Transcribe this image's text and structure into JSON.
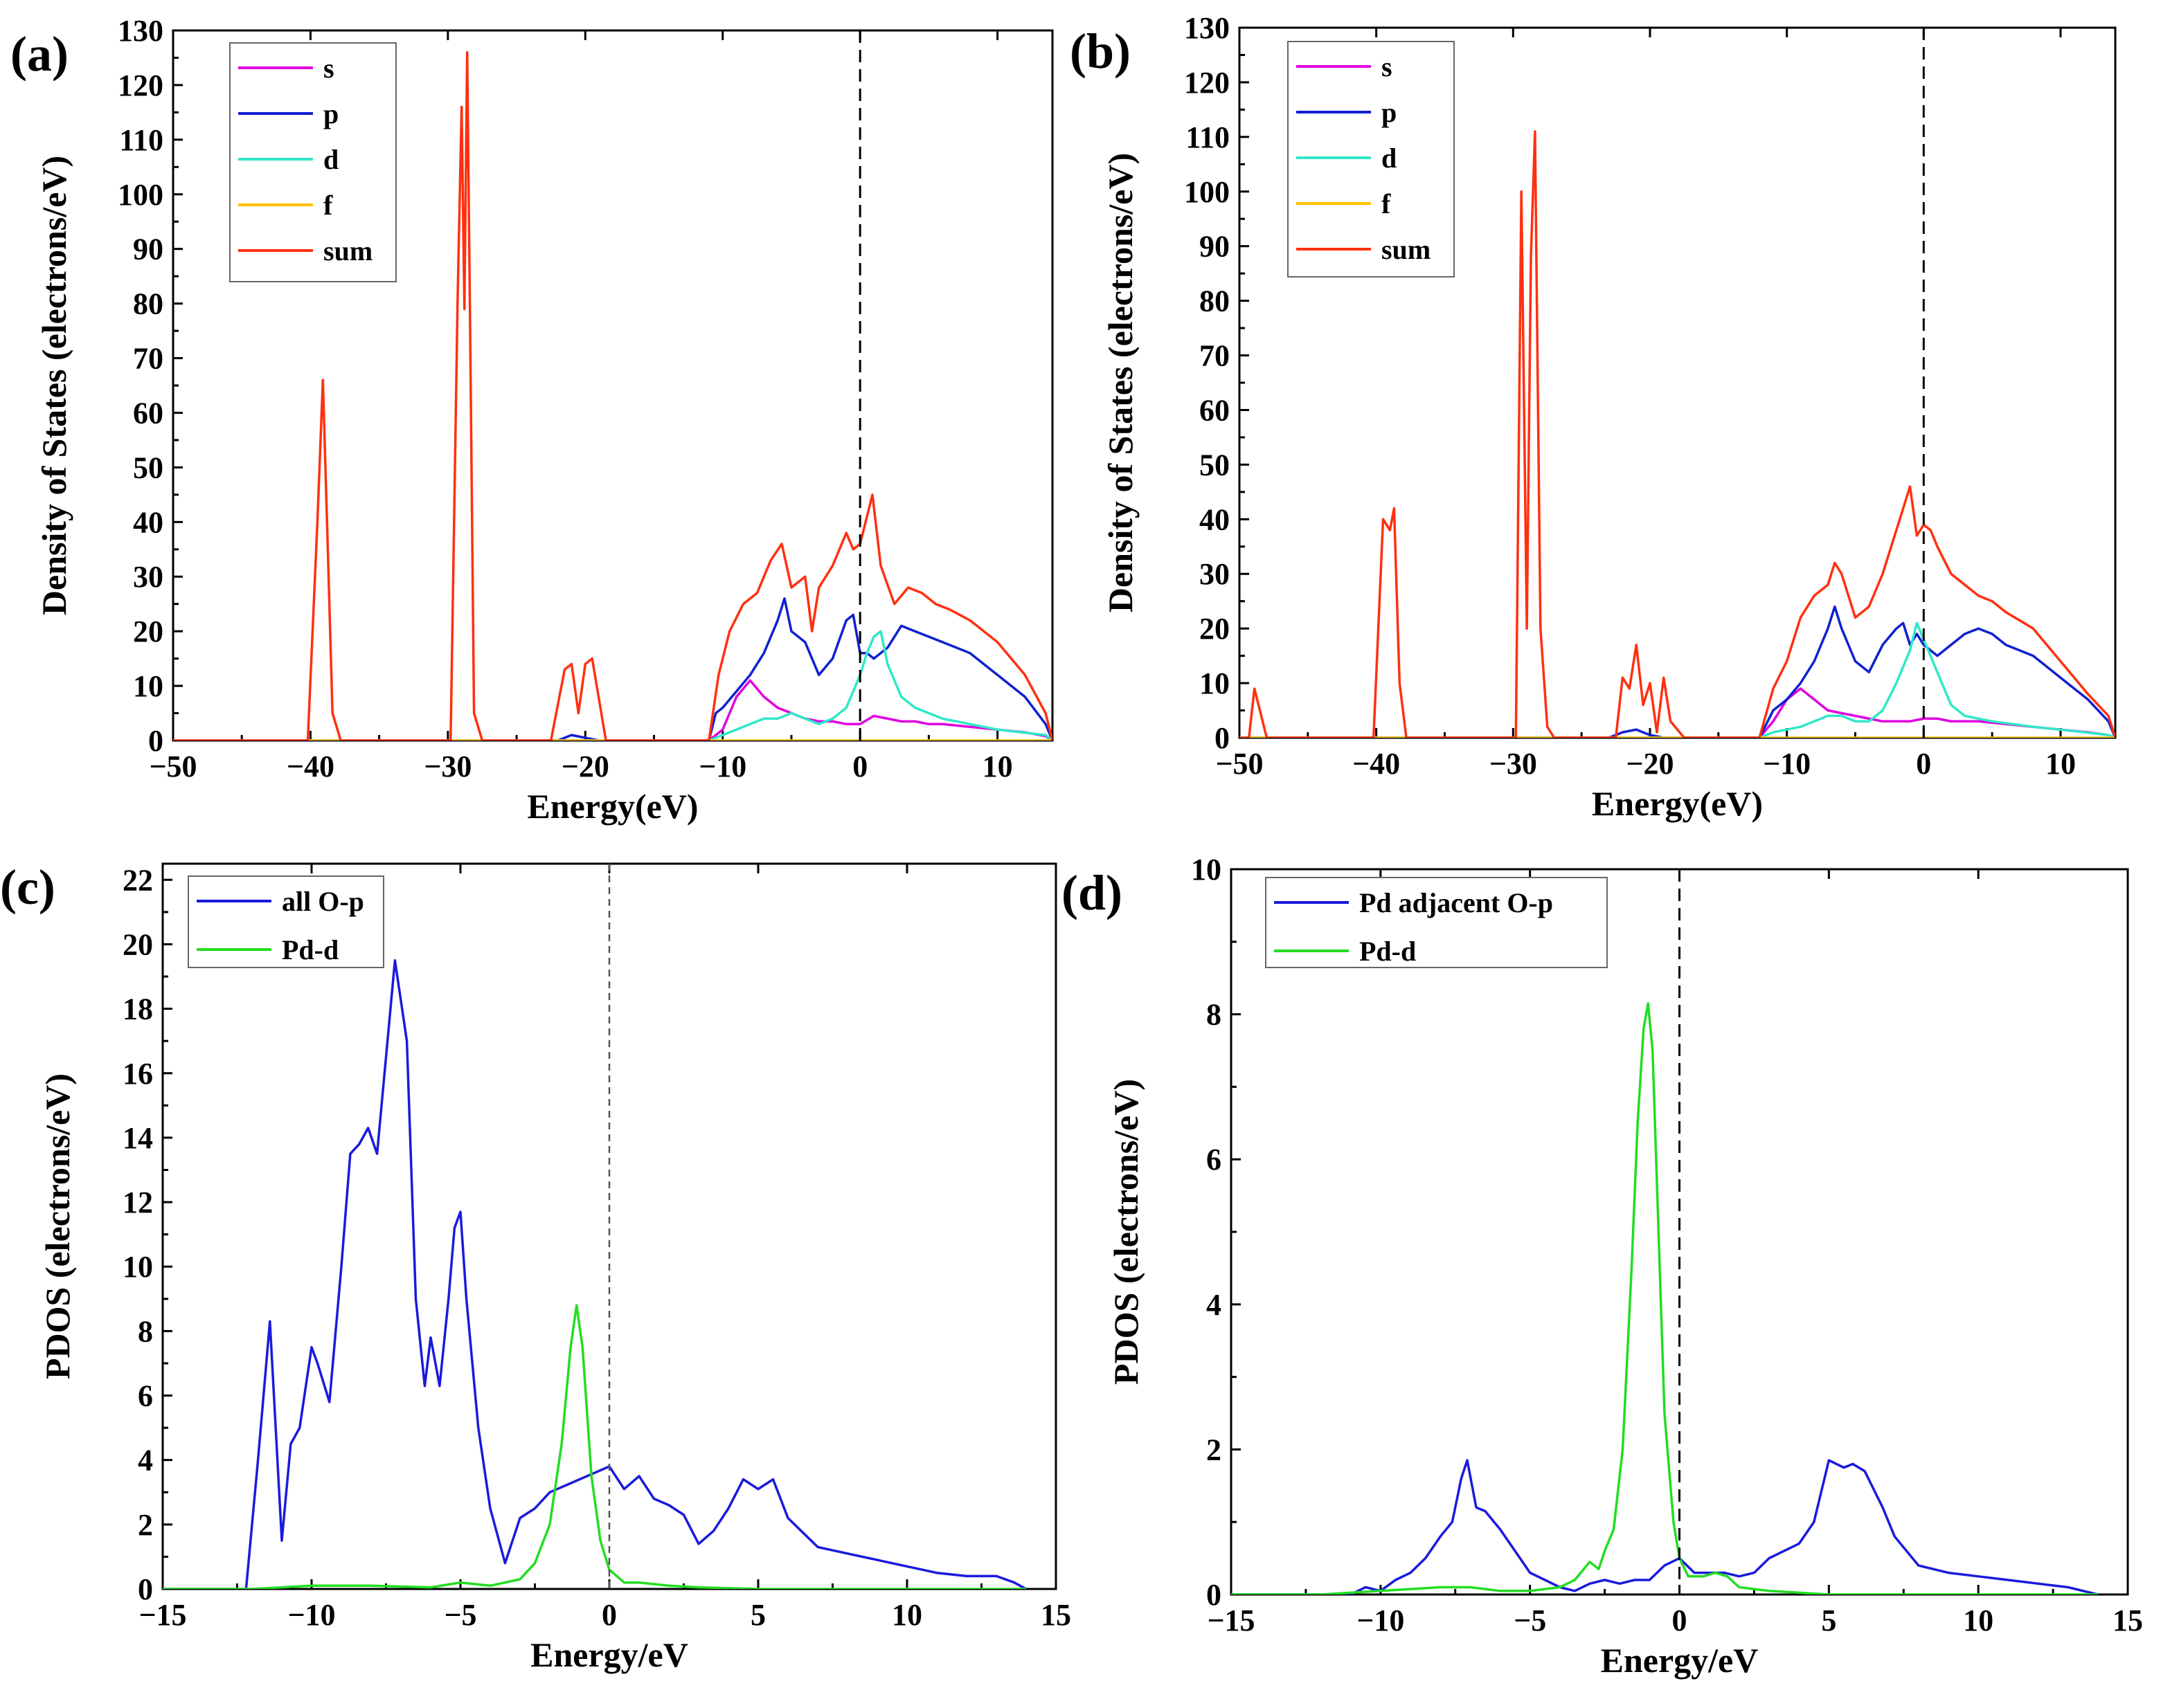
{
  "chart_data": [
    {
      "panel": "(a)",
      "type": "line",
      "xlabel": "Energy(eV)",
      "ylabel": "Density of States (electrons/eV)",
      "xlim": [
        -50,
        14
      ],
      "ylim": [
        0,
        130
      ],
      "xticks": [
        -50,
        -40,
        -30,
        -20,
        -10,
        0,
        10
      ],
      "yticks": [
        0,
        10,
        20,
        30,
        40,
        50,
        60,
        70,
        80,
        90,
        100,
        110,
        120,
        130
      ],
      "xtick_labels": [
        "−50",
        "−40",
        "−30",
        "−20",
        "−10",
        "0",
        "10"
      ],
      "ytick_labels": [
        "0",
        "10",
        "20",
        "30",
        "40",
        "50",
        "60",
        "70",
        "80",
        "90",
        "100",
        "110",
        "120",
        "130"
      ],
      "fermi_level": 0,
      "legend_position": "top-left",
      "series": [
        {
          "name": "s",
          "color": "#e000e0",
          "x": [
            -50,
            -11,
            -10,
            -9,
            -8,
            -7,
            -6,
            -5,
            -4,
            -3,
            -2,
            -1,
            0,
            1,
            2,
            3,
            4,
            5,
            6,
            8,
            10,
            12,
            13.5,
            14
          ],
          "y": [
            0,
            0,
            2,
            8,
            11,
            8,
            6,
            5,
            4,
            3.5,
            3.5,
            3,
            3,
            4.5,
            4,
            3.5,
            3.5,
            3,
            3,
            2.5,
            2,
            1.5,
            0.8,
            0
          ]
        },
        {
          "name": "p",
          "color": "#1020d0",
          "x": [
            -50,
            -22,
            -21,
            -20,
            -19,
            -11,
            -10.5,
            -10,
            -9,
            -8,
            -7,
            -6,
            -5.5,
            -5,
            -4,
            -3,
            -2,
            -1,
            -0.5,
            0,
            0.5,
            1,
            2,
            3,
            4,
            5,
            6,
            8,
            10,
            12,
            13.5,
            14
          ],
          "y": [
            0,
            0,
            1,
            0.5,
            0,
            0,
            5,
            6,
            9,
            12,
            16,
            22,
            26,
            20,
            18,
            12,
            15,
            22,
            23,
            16,
            16,
            15,
            17,
            21,
            20,
            19,
            18,
            16,
            12,
            8,
            3,
            0
          ]
        },
        {
          "name": "d",
          "color": "#30e8c8",
          "x": [
            -50,
            -11,
            -10,
            -9,
            -8,
            -7,
            -6,
            -5,
            -4,
            -3,
            -2,
            -1,
            0,
            0.5,
            1,
            1.5,
            2,
            3,
            4,
            6,
            8,
            10,
            13.5,
            14
          ],
          "y": [
            0,
            0,
            1,
            2,
            3,
            4,
            4,
            5,
            4,
            3,
            4,
            6,
            12,
            16,
            19,
            20,
            14,
            8,
            6,
            4,
            3,
            2,
            1,
            0
          ]
        },
        {
          "name": "f",
          "color": "#ffc000",
          "x": [
            -50,
            14
          ],
          "y": [
            0,
            0
          ]
        },
        {
          "name": "sum",
          "color": "#ff3010",
          "x": [
            -50,
            -40.2,
            -39.5,
            -39.1,
            -38.8,
            -38.4,
            -37.8,
            -29.8,
            -29.3,
            -29.0,
            -28.8,
            -28.6,
            -28.4,
            -28.1,
            -27.5,
            -22.5,
            -21.5,
            -21.0,
            -20.5,
            -20.0,
            -19.5,
            -18.5,
            -11.0,
            -10.3,
            -9.5,
            -8.5,
            -7.5,
            -6.5,
            -5.7,
            -5.0,
            -4.0,
            -3.5,
            -3.0,
            -2.0,
            -1.0,
            -0.5,
            0.0,
            0.5,
            0.9,
            1.5,
            2.5,
            3.5,
            4.5,
            5.5,
            6.5,
            8.0,
            10.0,
            12.0,
            13.5,
            14.0
          ],
          "y": [
            0,
            0,
            40,
            66,
            40,
            5,
            0,
            0,
            80,
            116,
            79,
            126,
            80,
            5,
            0,
            0,
            13,
            14,
            5,
            14,
            15,
            0,
            0,
            12,
            20,
            25,
            27,
            33,
            36,
            28,
            30,
            20,
            28,
            32,
            38,
            35,
            36,
            41,
            45,
            32,
            25,
            28,
            27,
            25,
            24,
            22,
            18,
            12,
            5,
            0
          ]
        }
      ]
    },
    {
      "panel": "(b)",
      "type": "line",
      "xlabel": "Energy(eV)",
      "ylabel": "Density of States (electrons/eV)",
      "xlim": [
        -50,
        14
      ],
      "ylim": [
        0,
        130
      ],
      "xticks": [
        -50,
        -40,
        -30,
        -20,
        -10,
        0,
        10
      ],
      "yticks": [
        0,
        10,
        20,
        30,
        40,
        50,
        60,
        70,
        80,
        90,
        100,
        110,
        120,
        130
      ],
      "xtick_labels": [
        "−50",
        "−40",
        "−30",
        "−20",
        "−10",
        "0",
        "10"
      ],
      "ytick_labels": [
        "0",
        "10",
        "20",
        "30",
        "40",
        "50",
        "60",
        "70",
        "80",
        "90",
        "100",
        "110",
        "120",
        "130"
      ],
      "fermi_level": 0,
      "legend_position": "top-left",
      "series": [
        {
          "name": "s",
          "color": "#e000e0",
          "x": [
            -50,
            -12,
            -11,
            -10,
            -9,
            -8,
            -7,
            -6,
            -5,
            -4,
            -3,
            -2,
            -1,
            0,
            1,
            2,
            4,
            6,
            8,
            10,
            12,
            13.5,
            14
          ],
          "y": [
            0,
            0,
            3,
            7,
            9,
            7,
            5,
            4.5,
            4,
            3.5,
            3,
            3,
            3,
            3.5,
            3.5,
            3,
            3,
            2.5,
            2,
            1.5,
            1,
            0.5,
            0
          ]
        },
        {
          "name": "p",
          "color": "#1020d0",
          "x": [
            -50,
            -23,
            -22,
            -21,
            -20,
            -19,
            -12,
            -11,
            -10,
            -9,
            -8,
            -7,
            -6.5,
            -6,
            -5,
            -4,
            -3,
            -2,
            -1.5,
            -1,
            -0.5,
            0,
            1,
            2,
            3,
            4,
            5,
            6,
            8,
            10,
            12,
            13.5,
            14
          ],
          "y": [
            0,
            0,
            1,
            1.5,
            0.5,
            0,
            0,
            5,
            7,
            10,
            14,
            20,
            24,
            20,
            14,
            12,
            17,
            20,
            21,
            17,
            19,
            17,
            15,
            17,
            19,
            20,
            19,
            17,
            15,
            11,
            7,
            3,
            0
          ]
        },
        {
          "name": "d",
          "color": "#30e8c8",
          "x": [
            -50,
            -12,
            -11,
            -10,
            -9,
            -8,
            -7,
            -6,
            -5,
            -4,
            -3,
            -2,
            -1,
            -0.5,
            0,
            1,
            2,
            3,
            5,
            8,
            10,
            13.5,
            14
          ],
          "y": [
            0,
            0,
            1,
            1.5,
            2,
            3,
            4,
            4,
            3,
            3,
            5,
            10,
            16,
            21,
            18,
            12,
            6,
            4,
            3,
            2,
            1.5,
            0.5,
            0
          ]
        },
        {
          "name": "f",
          "color": "#ffc000",
          "x": [
            -50,
            14
          ],
          "y": [
            0,
            0
          ]
        },
        {
          "name": "sum",
          "color": "#ff3010",
          "x": [
            -50,
            -49.3,
            -48.9,
            -48.5,
            -48.0,
            -40.2,
            -39.5,
            -39.0,
            -38.7,
            -38.3,
            -37.8,
            -29.8,
            -29.4,
            -29.0,
            -28.7,
            -28.4,
            -28.0,
            -27.5,
            -27.0,
            -22.5,
            -22.0,
            -21.5,
            -21.0,
            -20.5,
            -20.0,
            -19.5,
            -19.0,
            -18.5,
            -17.5,
            -12.0,
            -11.0,
            -10.0,
            -9.0,
            -8.0,
            -7.0,
            -6.5,
            -6.0,
            -5.0,
            -4.0,
            -3.0,
            -2.0,
            -1.0,
            -0.5,
            0.0,
            0.5,
            1.0,
            2.0,
            3.0,
            4.0,
            5.0,
            6.0,
            8.0,
            10.0,
            12.0,
            13.5,
            14.0
          ],
          "y": [
            0,
            0,
            9,
            5,
            0,
            0,
            40,
            38,
            42,
            10,
            0,
            0,
            100,
            20,
            88,
            111,
            20,
            2,
            0,
            0,
            11,
            9,
            17,
            6,
            10,
            1,
            11,
            3,
            0,
            0,
            9,
            14,
            22,
            26,
            28,
            32,
            30,
            22,
            24,
            30,
            38,
            46,
            37,
            39,
            38,
            35,
            30,
            28,
            26,
            25,
            23,
            20,
            14,
            8,
            4,
            0
          ]
        }
      ]
    },
    {
      "panel": "(c)",
      "type": "line",
      "xlabel": "Energy/eV",
      "ylabel": "PDOS (electrons/eV)",
      "xlim": [
        -15,
        15
      ],
      "ylim": [
        0,
        22.5
      ],
      "xticks": [
        -15,
        -10,
        -5,
        0,
        5,
        10,
        15
      ],
      "yticks": [
        0,
        2,
        4,
        6,
        8,
        10,
        12,
        14,
        16,
        18,
        20,
        22
      ],
      "xtick_labels": [
        "−15",
        "−10",
        "−5",
        "0",
        "5",
        "10",
        "15"
      ],
      "ytick_labels": [
        "0",
        "2",
        "4",
        "6",
        "8",
        "10",
        "12",
        "14",
        "16",
        "18",
        "20",
        "22"
      ],
      "fermi_level": 0,
      "legend_position": "top-left",
      "series": [
        {
          "name": "all O-p",
          "color": "#1a1adc",
          "x": [
            -15,
            -12.2,
            -11.8,
            -11.4,
            -11.0,
            -10.7,
            -10.4,
            -10.0,
            -9.8,
            -9.4,
            -9.0,
            -8.7,
            -8.4,
            -8.1,
            -7.8,
            -7.5,
            -7.2,
            -6.8,
            -6.5,
            -6.2,
            -6.0,
            -5.7,
            -5.4,
            -5.2,
            -5.0,
            -4.8,
            -4.4,
            -4.0,
            -3.5,
            -3.0,
            -2.5,
            -2.0,
            -1.5,
            -1.0,
            -0.5,
            0.0,
            0.5,
            1.0,
            1.5,
            2.0,
            2.5,
            3.0,
            3.5,
            4.0,
            4.5,
            5.0,
            5.5,
            6.0,
            7.0,
            8.0,
            9.0,
            10.0,
            11.0,
            12.0,
            13.0,
            13.6,
            14.0
          ],
          "y": [
            0,
            0,
            4,
            8.3,
            1.5,
            4.5,
            5,
            7.5,
            7,
            5.8,
            10,
            13.5,
            13.8,
            14.3,
            13.5,
            16.5,
            19.5,
            17,
            9,
            6.3,
            7.8,
            6.3,
            9,
            11.2,
            11.7,
            9,
            5,
            2.5,
            0.8,
            2.2,
            2.5,
            3,
            3.2,
            3.4,
            3.6,
            3.8,
            3.1,
            3.5,
            2.8,
            2.6,
            2.3,
            1.4,
            1.8,
            2.5,
            3.4,
            3.1,
            3.4,
            2.2,
            1.3,
            1.1,
            0.9,
            0.7,
            0.5,
            0.4,
            0.4,
            0.2,
            0
          ]
        },
        {
          "name": "Pd-d",
          "color": "#22dd22",
          "x": [
            -15,
            -12,
            -10,
            -8,
            -6,
            -5,
            -4,
            -3,
            -2.5,
            -2.0,
            -1.6,
            -1.3,
            -1.1,
            -0.9,
            -0.6,
            -0.3,
            0.0,
            0.5,
            1.0,
            2.0,
            3.0,
            5.0,
            8.0,
            14.0
          ],
          "y": [
            0,
            0,
            0.1,
            0.1,
            0.05,
            0.2,
            0.1,
            0.3,
            0.8,
            2.0,
            4.5,
            7.5,
            8.8,
            7.5,
            3.5,
            1.5,
            0.6,
            0.2,
            0.2,
            0.1,
            0.05,
            0,
            0,
            0
          ]
        }
      ]
    },
    {
      "panel": "(d)",
      "type": "line",
      "xlabel": "Energy/eV",
      "ylabel": "PDOS (electrons/eV)",
      "xlim": [
        -15,
        15
      ],
      "ylim": [
        0,
        10
      ],
      "xticks": [
        -15,
        -10,
        -5,
        0,
        5,
        10,
        15
      ],
      "yticks": [
        0,
        2,
        4,
        6,
        8,
        10
      ],
      "xtick_labels": [
        "−15",
        "−10",
        "−5",
        "0",
        "5",
        "10",
        "15"
      ],
      "ytick_labels": [
        "0",
        "2",
        "4",
        "6",
        "8",
        "10"
      ],
      "fermi_level": 0,
      "legend_position": "top-left",
      "series": [
        {
          "name": "Pd adjacent O-p",
          "color": "#1a1adc",
          "x": [
            -15,
            -11,
            -10.5,
            -10,
            -9.5,
            -9,
            -8.5,
            -8,
            -7.6,
            -7.3,
            -7.1,
            -6.8,
            -6.5,
            -6.0,
            -5.5,
            -5.0,
            -4.5,
            -4.0,
            -3.5,
            -3.0,
            -2.5,
            -2.0,
            -1.5,
            -1.0,
            -0.5,
            0.0,
            0.5,
            1.0,
            1.5,
            2.0,
            2.5,
            3.0,
            3.5,
            4.0,
            4.5,
            5.0,
            5.5,
            5.8,
            6.2,
            6.8,
            7.2,
            8.0,
            9.0,
            10.0,
            11.0,
            12.0,
            13.0,
            14.0
          ],
          "y": [
            0,
            0,
            0.1,
            0.05,
            0.2,
            0.3,
            0.5,
            0.8,
            1.0,
            1.6,
            1.85,
            1.2,
            1.15,
            0.9,
            0.6,
            0.3,
            0.2,
            0.1,
            0.05,
            0.15,
            0.2,
            0.15,
            0.2,
            0.2,
            0.4,
            0.5,
            0.3,
            0.3,
            0.3,
            0.25,
            0.3,
            0.5,
            0.6,
            0.7,
            1.0,
            1.85,
            1.75,
            1.8,
            1.7,
            1.2,
            0.8,
            0.4,
            0.3,
            0.25,
            0.2,
            0.15,
            0.1,
            0
          ]
        },
        {
          "name": "Pd-d",
          "color": "#22dd22",
          "x": [
            -15,
            -12,
            -10,
            -8,
            -7,
            -6,
            -5,
            -4,
            -3.5,
            -3.0,
            -2.7,
            -2.5,
            -2.2,
            -1.9,
            -1.6,
            -1.4,
            -1.2,
            -1.05,
            -0.9,
            -0.7,
            -0.5,
            -0.2,
            0.0,
            0.3,
            0.8,
            1.2,
            1.6,
            2.0,
            3.0,
            5.0,
            14.0
          ],
          "y": [
            0,
            0,
            0.05,
            0.1,
            0.1,
            0.05,
            0.05,
            0.1,
            0.2,
            0.45,
            0.35,
            0.6,
            0.9,
            2.0,
            4.5,
            6.5,
            7.8,
            8.15,
            7.5,
            5.0,
            2.5,
            1.0,
            0.5,
            0.25,
            0.25,
            0.3,
            0.25,
            0.1,
            0.05,
            0,
            0
          ]
        }
      ]
    }
  ]
}
